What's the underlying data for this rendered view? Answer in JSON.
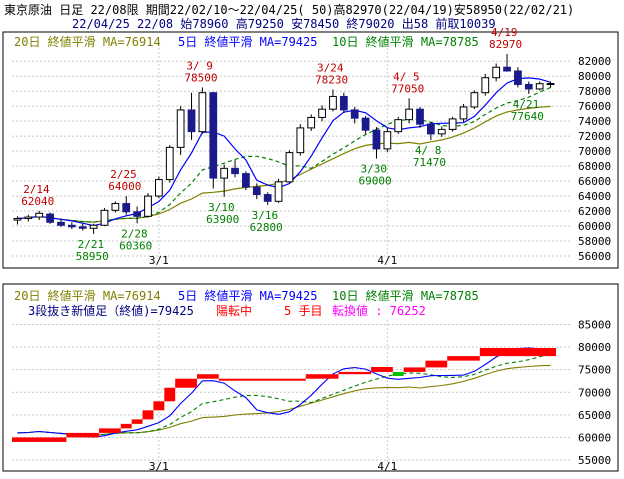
{
  "header": {
    "line1": "東京原油 日足 22/08限 期間22/02/10～22/04/25( 50)高82970(22/04/19)安58950(22/02/21)",
    "line2": "22/04/25 22/08 始78960 高79250 安78450 終79020 出58 前取10039"
  },
  "colors": {
    "up": "#ffffff",
    "down": "#1a1a8a",
    "ma5": "#0000ff",
    "ma10": "#008000",
    "ma20": "#808000",
    "label_red": "#c00000",
    "label_green": "#008000",
    "nb_up": "#ff0000",
    "nb_down": "#00c000",
    "nb_text": "#ff0000",
    "nb_value": "#ff00ff"
  },
  "top_panel": {
    "legend": {
      "ma20": "20日 終値平滑 MA=76914",
      "ma5": "5日 終値平滑 MA=79425",
      "ma10": "10日 終値平滑 MA=78785"
    },
    "y_ticks": [
      "82000",
      "80000",
      "78000",
      "76000",
      "74000",
      "72000",
      "70000",
      "68000",
      "66000",
      "64000",
      "62000",
      "60000",
      "58000",
      "56000"
    ],
    "x_labels": [
      "3/1",
      "4/1"
    ],
    "annotations": [
      {
        "date": "2/14",
        "value": "62040",
        "color": "red"
      },
      {
        "date": "2/21",
        "value": "58950",
        "color": "green"
      },
      {
        "date": "2/25",
        "value": "64000",
        "color": "red"
      },
      {
        "date": "2/28",
        "value": "60360",
        "color": "green"
      },
      {
        "date": "3/ 9",
        "value": "78500",
        "color": "red"
      },
      {
        "date": "3/10",
        "value": "63900",
        "color": "green"
      },
      {
        "date": "3/16",
        "value": "62800",
        "color": "green"
      },
      {
        "date": "3/24",
        "value": "78230",
        "color": "red"
      },
      {
        "date": "3/30",
        "value": "69000",
        "color": "green"
      },
      {
        "date": "4/ 5",
        "value": "77050",
        "color": "red"
      },
      {
        "date": "4/ 8",
        "value": "71470",
        "color": "green"
      },
      {
        "date": "4/19",
        "value": "82970",
        "color": "red"
      },
      {
        "date": "4/21",
        "value": "77640",
        "color": "green"
      }
    ]
  },
  "bottom_panel": {
    "legend": {
      "ma20": "20日 終値平滑 MA=76914",
      "ma5": "5日 終値平滑 MA=79425",
      "ma10": "10日 終値平滑 MA=78785"
    },
    "nb_title": "3段抜き新値足（終値)=79425",
    "nb_state": "陽転中",
    "nb_count": "5 手目",
    "nb_switch": "転換値 : 76252",
    "y_ticks": [
      "85000",
      "80000",
      "75000",
      "70000",
      "65000",
      "60000",
      "55000"
    ],
    "x_labels": [
      "3/1",
      "4/1"
    ]
  },
  "chart_data": [
    {
      "type": "candlestick",
      "title": "東京原油 日足 22/08限",
      "x_tick_labels": [
        "3/1",
        "4/1"
      ],
      "ylim": [
        56000,
        83500
      ],
      "candles": [
        {
          "o": 60800,
          "h": 61300,
          "l": 60200,
          "c": 61000
        },
        {
          "o": 61000,
          "h": 61500,
          "l": 60600,
          "c": 61200
        },
        {
          "o": 61200,
          "h": 62040,
          "l": 60800,
          "c": 61700
        },
        {
          "o": 61600,
          "h": 61800,
          "l": 60300,
          "c": 60500
        },
        {
          "o": 60500,
          "h": 60900,
          "l": 59900,
          "c": 60100
        },
        {
          "o": 60100,
          "h": 60500,
          "l": 59600,
          "c": 59900
        },
        {
          "o": 59900,
          "h": 60300,
          "l": 59400,
          "c": 59700
        },
        {
          "o": 59700,
          "h": 60300,
          "l": 58950,
          "c": 60100
        },
        {
          "o": 60100,
          "h": 62400,
          "l": 60000,
          "c": 62100
        },
        {
          "o": 62100,
          "h": 63300,
          "l": 61800,
          "c": 63000
        },
        {
          "o": 63000,
          "h": 64000,
          "l": 61500,
          "c": 61900
        },
        {
          "o": 61900,
          "h": 62600,
          "l": 60360,
          "c": 61300
        },
        {
          "o": 61300,
          "h": 64400,
          "l": 61100,
          "c": 64000
        },
        {
          "o": 64000,
          "h": 66600,
          "l": 63700,
          "c": 66200
        },
        {
          "o": 66200,
          "h": 70800,
          "l": 65800,
          "c": 70500
        },
        {
          "o": 70500,
          "h": 76000,
          "l": 69500,
          "c": 75500
        },
        {
          "o": 75500,
          "h": 77800,
          "l": 71500,
          "c": 72600
        },
        {
          "o": 72600,
          "h": 78500,
          "l": 72300,
          "c": 77800
        },
        {
          "o": 77800,
          "h": 77900,
          "l": 65000,
          "c": 66400
        },
        {
          "o": 66400,
          "h": 68200,
          "l": 63900,
          "c": 67700
        },
        {
          "o": 67700,
          "h": 68800,
          "l": 66500,
          "c": 67000
        },
        {
          "o": 67000,
          "h": 67300,
          "l": 64800,
          "c": 65200
        },
        {
          "o": 65200,
          "h": 65700,
          "l": 63600,
          "c": 64200
        },
        {
          "o": 64200,
          "h": 64500,
          "l": 62800,
          "c": 63300
        },
        {
          "o": 63300,
          "h": 66300,
          "l": 63100,
          "c": 65900
        },
        {
          "o": 65900,
          "h": 70100,
          "l": 65700,
          "c": 69800
        },
        {
          "o": 69800,
          "h": 73600,
          "l": 69400,
          "c": 73100
        },
        {
          "o": 73100,
          "h": 74900,
          "l": 72700,
          "c": 74500
        },
        {
          "o": 74500,
          "h": 76100,
          "l": 74000,
          "c": 75600
        },
        {
          "o": 75600,
          "h": 78230,
          "l": 75300,
          "c": 77300
        },
        {
          "o": 77300,
          "h": 77800,
          "l": 75100,
          "c": 75500
        },
        {
          "o": 75500,
          "h": 75900,
          "l": 73700,
          "c": 74400
        },
        {
          "o": 74400,
          "h": 74700,
          "l": 72300,
          "c": 72800
        },
        {
          "o": 72800,
          "h": 73200,
          "l": 69000,
          "c": 70300
        },
        {
          "o": 70300,
          "h": 73100,
          "l": 69900,
          "c": 72600
        },
        {
          "o": 72600,
          "h": 74600,
          "l": 72300,
          "c": 74200
        },
        {
          "o": 74200,
          "h": 77050,
          "l": 73700,
          "c": 75600
        },
        {
          "o": 75600,
          "h": 75900,
          "l": 73100,
          "c": 73600
        },
        {
          "o": 73600,
          "h": 73900,
          "l": 71470,
          "c": 72300
        },
        {
          "o": 72300,
          "h": 73300,
          "l": 71900,
          "c": 72900
        },
        {
          "o": 72900,
          "h": 74600,
          "l": 72600,
          "c": 74300
        },
        {
          "o": 74300,
          "h": 76300,
          "l": 73900,
          "c": 75900
        },
        {
          "o": 75900,
          "h": 78100,
          "l": 75600,
          "c": 77800
        },
        {
          "o": 77800,
          "h": 80300,
          "l": 77400,
          "c": 79800
        },
        {
          "o": 79800,
          "h": 81700,
          "l": 79300,
          "c": 81200
        },
        {
          "o": 81200,
          "h": 82970,
          "l": 80600,
          "c": 80700
        },
        {
          "o": 80700,
          "h": 81200,
          "l": 78500,
          "c": 78900
        },
        {
          "o": 78900,
          "h": 79300,
          "l": 77640,
          "c": 78300
        },
        {
          "o": 78300,
          "h": 79300,
          "l": 78100,
          "c": 79000
        },
        {
          "o": 78960,
          "h": 79250,
          "l": 78450,
          "c": 79020
        }
      ]
    },
    {
      "type": "bar",
      "title": "3段抜き新値足（終値)=79425",
      "x_tick_labels": [
        "3/1",
        "4/1"
      ],
      "ylim": [
        55000,
        86000
      ],
      "bricks": [
        {
          "from": 59000,
          "to": 60000,
          "dir": "up"
        },
        {
          "from": 60000,
          "to": 61000,
          "dir": "up"
        },
        {
          "from": 61000,
          "to": 62000,
          "dir": "up"
        },
        {
          "from": 62000,
          "to": 63000,
          "dir": "up"
        },
        {
          "from": 63000,
          "to": 64000,
          "dir": "up"
        },
        {
          "from": 64000,
          "to": 66000,
          "dir": "up"
        },
        {
          "from": 66000,
          "to": 68000,
          "dir": "up"
        },
        {
          "from": 68000,
          "to": 71000,
          "dir": "up"
        },
        {
          "from": 71000,
          "to": 73000,
          "dir": "up"
        },
        {
          "from": 73000,
          "to": 74000,
          "dir": "up"
        },
        {
          "from": 72600,
          "to": 73000,
          "dir": "up"
        },
        {
          "from": 73000,
          "to": 74000,
          "dir": "up"
        },
        {
          "from": 74000,
          "to": 74500,
          "dir": "up"
        },
        {
          "from": 74500,
          "to": 75600,
          "dir": "up"
        },
        {
          "from": 73600,
          "to": 74500,
          "dir": "down"
        },
        {
          "from": 74500,
          "to": 75500,
          "dir": "up"
        },
        {
          "from": 75500,
          "to": 77000,
          "dir": "up"
        },
        {
          "from": 77000,
          "to": 78000,
          "dir": "up"
        },
        {
          "from": 78000,
          "to": 79800,
          "dir": "up"
        },
        {
          "from": 78000,
          "to": 79800,
          "dir": "up"
        }
      ]
    }
  ]
}
